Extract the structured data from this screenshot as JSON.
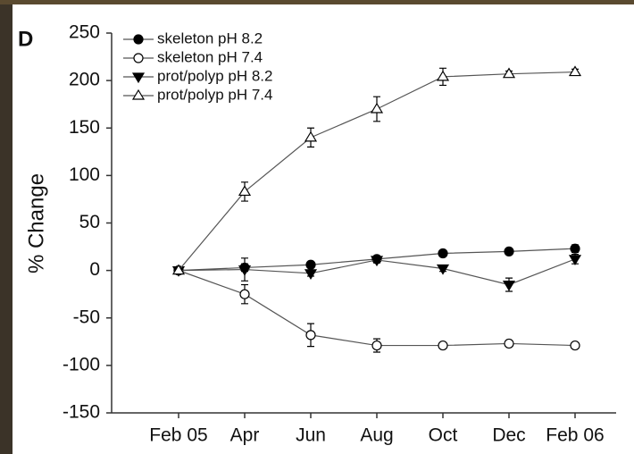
{
  "chart_data": {
    "type": "line",
    "panel_label": "D",
    "y_label": "% Change",
    "categories": [
      "Feb 05",
      "Apr",
      "Jun",
      "Aug",
      "Oct",
      "Dec",
      "Feb 06"
    ],
    "ylim": [
      -150,
      250
    ],
    "yticks": [
      -150,
      -100,
      -50,
      0,
      50,
      100,
      150,
      200,
      250
    ],
    "series": [
      {
        "name": "skeleton pH 8.2",
        "color": "#000000",
        "marker": "circle",
        "filled": true,
        "values": [
          0,
          3,
          6,
          12,
          18,
          20,
          23
        ],
        "errors": [
          0,
          4,
          3,
          3,
          3,
          3,
          4
        ]
      },
      {
        "name": "skeleton pH 7.4",
        "color": "#000000",
        "marker": "circle",
        "filled": false,
        "values": [
          0,
          -25,
          -68,
          -79,
          -79,
          -77,
          -79
        ],
        "errors": [
          0,
          10,
          12,
          7,
          3,
          3,
          3
        ]
      },
      {
        "name": "prot/polyp pH 8.2",
        "color": "#000000",
        "marker": "triangle-down",
        "filled": true,
        "values": [
          0,
          1,
          -3,
          11,
          2,
          -15,
          12
        ],
        "errors": [
          0,
          12,
          3,
          3,
          3,
          7,
          5
        ]
      },
      {
        "name": "prot/polyp pH 7.4",
        "color": "#000000",
        "marker": "triangle-up",
        "filled": false,
        "values": [
          0,
          83,
          140,
          170,
          204,
          207,
          209
        ],
        "errors": [
          0,
          10,
          10,
          13,
          9,
          3,
          3
        ]
      }
    ]
  }
}
